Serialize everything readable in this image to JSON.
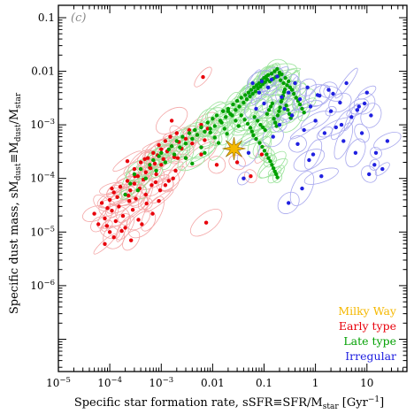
{
  "chart_data": {
    "type": "scatter",
    "panel_label": "(c)",
    "xlabel": "Specific star formation rate, sSFR≡SFR/M",
    "xlabel_sub": "star",
    "xlabel_unit": " [Gyr",
    "xlabel_unit_sup": "−1",
    "xlabel_unit_end": "]",
    "ylabel": "Specific dust mass, sM",
    "ylabel_sub1": "dust",
    "ylabel_mid": "≡M",
    "ylabel_sub2": "dust",
    "ylabel_slash": "/M",
    "ylabel_sub3": "star",
    "x_scale": "log",
    "y_scale": "log",
    "xlim": [
      1e-05,
      60
    ],
    "ylim": [
      2.5e-08,
      0.17
    ],
    "x_ticks": [
      {
        "value": 1e-05,
        "base": "10",
        "exp": "−5"
      },
      {
        "value": 0.0001,
        "base": "10",
        "exp": "−4"
      },
      {
        "value": 0.001,
        "base": "10",
        "exp": "−3"
      },
      {
        "value": 0.01,
        "base": "0.01",
        "exp": ""
      },
      {
        "value": 0.1,
        "base": "0.1",
        "exp": ""
      },
      {
        "value": 1,
        "base": "1",
        "exp": ""
      },
      {
        "value": 10,
        "base": "10",
        "exp": ""
      }
    ],
    "y_ticks": [
      {
        "value": 1e-06,
        "base": "10",
        "exp": "−6"
      },
      {
        "value": 1e-05,
        "base": "10",
        "exp": "−5"
      },
      {
        "value": 0.0001,
        "base": "10",
        "exp": "−4"
      },
      {
        "value": 0.001,
        "base": "10",
        "exp": "−3"
      },
      {
        "value": 0.01,
        "base": "0.01",
        "exp": ""
      },
      {
        "value": 0.1,
        "base": "0.1",
        "exp": ""
      }
    ],
    "legend_position": "bottom-right",
    "legend": [
      {
        "name": "Milky Way",
        "color": "#f5b800"
      },
      {
        "name": "Early type",
        "color": "#e8000b"
      },
      {
        "name": "Late type",
        "color": "#00a000"
      },
      {
        "name": "Irregular",
        "color": "#2020e0"
      }
    ],
    "milky_way": {
      "x": 0.026,
      "y": 0.00036,
      "color": "#f5b800"
    },
    "series": [
      {
        "name": "Early type",
        "color": "#e8000b",
        "ellipse_color": "#f4a6a6",
        "x": [
          5e-05,
          6e-05,
          7e-05,
          8e-05,
          8e-05,
          9e-05,
          0.0001,
          0.0001,
          0.00011,
          0.00012,
          0.00013,
          0.00014,
          0.00015,
          0.00016,
          0.00018,
          0.0002,
          0.0002,
          0.00022,
          0.00024,
          0.00025,
          0.00028,
          0.0003,
          0.0003,
          0.00032,
          0.00035,
          0.00038,
          0.0004,
          0.00045,
          0.0005,
          0.0005,
          0.00055,
          0.0006,
          0.00065,
          0.0007,
          0.00075,
          0.0008,
          0.00085,
          0.0009,
          0.001,
          0.001,
          0.0011,
          0.0012,
          0.0013,
          0.0015,
          0.0016,
          0.0018,
          0.002,
          0.0022,
          0.0025,
          0.003,
          0.0035,
          0.004,
          0.005,
          0.006,
          0.007,
          0.008,
          0.00012,
          0.00026,
          0.00042,
          0.00068,
          0.00017,
          0.00036,
          0.00095,
          0.0014,
          0.00052,
          0.00023,
          0.00078,
          0.00011,
          0.00031,
          0.0019,
          0.012,
          0.006,
          0.00022,
          0.00062,
          8.8e-05,
          0.00048,
          0.0021,
          0.0017,
          0.0009,
          0.0012,
          0.03,
          0.055,
          0.09,
          0.0065,
          0.0016,
          0.0075
        ],
        "y": [
          2.2e-05,
          1.4e-05,
          3.5e-05,
          1.8e-05,
          6e-06,
          2.8e-05,
          4e-05,
          1e-05,
          2.5e-05,
          5.5e-05,
          1.6e-05,
          4.5e-05,
          3e-05,
          7e-05,
          2e-05,
          5e-05,
          1.2e-05,
          9e-05,
          3.8e-05,
          6e-05,
          2.6e-05,
          8e-05,
          0.00015,
          4.2e-05,
          0.00011,
          6.5e-05,
          0.0002,
          9.5e-05,
          0.00013,
          5e-05,
          0.00024,
          0.00016,
          7.5e-05,
          0.0003,
          0.00019,
          0.00012,
          0.00027,
          0.00042,
          0.00018,
          0.00035,
          0.00023,
          0.0005,
          0.00032,
          0.0006,
          0.0004,
          0.00025,
          0.0007,
          0.00048,
          0.00036,
          0.00055,
          0.0008,
          0.00045,
          0.00065,
          0.001,
          0.00052,
          0.00085,
          8e-06,
          7e-06,
          1.4e-05,
          2.2e-05,
          1.05e-05,
          1.7e-05,
          6e-05,
          9e-05,
          3.4e-05,
          4.8e-05,
          8.5e-05,
          6.5e-05,
          0.00011,
          0.00014,
          0.00018,
          0.00028,
          0.00021,
          0.000155,
          1.3e-05,
          0.00023,
          0.00024,
          0.0001,
          3.8e-05,
          7.5e-05,
          0.0002,
          0.00011,
          0.00028,
          0.0078,
          0.0012,
          1.5e-05
        ]
      },
      {
        "name": "Late type",
        "color": "#00a000",
        "ellipse_color": "#9be39b",
        "x": [
          0.0002,
          0.00025,
          0.0003,
          0.00035,
          0.0004,
          0.0005,
          0.0006,
          0.0007,
          0.0008,
          0.0009,
          0.001,
          0.0012,
          0.0014,
          0.0016,
          0.0018,
          0.002,
          0.0023,
          0.0026,
          0.003,
          0.0035,
          0.004,
          0.0045,
          0.005,
          0.006,
          0.007,
          0.008,
          0.009,
          0.01,
          0.011,
          0.012,
          0.014,
          0.016,
          0.018,
          0.02,
          0.022,
          0.025,
          0.028,
          0.03,
          0.033,
          0.036,
          0.04,
          0.043,
          0.046,
          0.05,
          0.053,
          0.056,
          0.06,
          0.064,
          0.068,
          0.072,
          0.076,
          0.08,
          0.085,
          0.09,
          0.095,
          0.1,
          0.105,
          0.11,
          0.115,
          0.12,
          0.13,
          0.14,
          0.15,
          0.16,
          0.17,
          0.18,
          0.19,
          0.2,
          0.21,
          0.22,
          0.24,
          0.26,
          0.28,
          0.3,
          0.32,
          0.35,
          0.38,
          0.42,
          0.46,
          0.5,
          0.55,
          0.6,
          0.065,
          0.075,
          0.085,
          0.095,
          0.105,
          0.115,
          0.125,
          0.135,
          0.145,
          0.155,
          0.165,
          0.175,
          0.185,
          0.195,
          0.205,
          0.215,
          0.225,
          0.235,
          0.245,
          0.255,
          0.27,
          0.29,
          0.31,
          0.33,
          0.036,
          0.042,
          0.048,
          0.054,
          0.058,
          0.062,
          0.07,
          0.082,
          0.092,
          0.102,
          0.112,
          0.122,
          0.132,
          0.142,
          0.152,
          0.162,
          0.172,
          0.182,
          0.02,
          0.024,
          0.028,
          0.032,
          0.015,
          0.017,
          0.019,
          0.009,
          0.011,
          0.013,
          0.006,
          0.007,
          0.003,
          0.004
        ],
        "y": [
          5e-05,
          8e-05,
          0.00012,
          6e-05,
          0.00015,
          0.0001,
          0.00018,
          0.00022,
          0.00014,
          0.00026,
          0.0003,
          0.0002,
          0.00035,
          0.0004,
          0.00028,
          0.0005,
          0.00038,
          0.0006,
          0.00045,
          0.0007,
          0.00055,
          0.0008,
          0.00065,
          0.0009,
          0.00075,
          0.0011,
          0.00085,
          0.0013,
          0.00095,
          0.0015,
          0.0012,
          0.0018,
          0.0014,
          0.002,
          0.0016,
          0.0024,
          0.0019,
          0.0028,
          0.0022,
          0.0032,
          0.0026,
          0.0036,
          0.003,
          0.004,
          0.0034,
          0.0045,
          0.0038,
          0.005,
          0.0042,
          0.0055,
          0.0048,
          0.006,
          0.0052,
          0.0068,
          0.0058,
          0.0075,
          0.0063,
          0.008,
          0.007,
          0.0085,
          0.0065,
          0.009,
          0.0072,
          0.01,
          0.0078,
          0.011,
          0.0082,
          0.0095,
          0.0068,
          0.0088,
          0.006,
          0.0075,
          0.0055,
          0.0065,
          0.005,
          0.0045,
          0.0038,
          0.0032,
          0.0028,
          0.0024,
          0.002,
          0.0017,
          0.0014,
          0.0012,
          0.001,
          0.0009,
          0.0008,
          0.0016,
          0.0019,
          0.0022,
          0.0025,
          0.0013,
          0.0011,
          0.00095,
          0.0015,
          0.0018,
          0.0021,
          0.0027,
          0.0031,
          0.0035,
          0.0041,
          0.0046,
          0.0023,
          0.0019,
          0.0016,
          0.00135,
          0.0015,
          0.00125,
          0.00105,
          0.00088,
          0.00075,
          0.00064,
          0.00055,
          0.00046,
          0.00039,
          0.00033,
          0.00028,
          0.00024,
          0.00021,
          0.00018,
          0.000155,
          0.000135,
          0.00012,
          0.000105,
          0.0018,
          0.0015,
          0.0012,
          0.00095,
          0.0011,
          0.00085,
          0.00068,
          0.00072,
          0.00058,
          0.00046,
          0.00038,
          0.0003,
          0.00024,
          0.00019
        ]
      },
      {
        "name": "Irregular",
        "color": "#2020e0",
        "ellipse_color": "#a8a8ee",
        "x": [
          0.04,
          0.05,
          0.06,
          0.07,
          0.08,
          0.1,
          0.12,
          0.15,
          0.18,
          0.2,
          0.25,
          0.3,
          0.35,
          0.4,
          0.5,
          0.6,
          0.7,
          0.8,
          1.0,
          1.2,
          1.5,
          1.8,
          2.0,
          2.5,
          3.0,
          3.5,
          4.0,
          5.0,
          6.0,
          7.0,
          8.0,
          10,
          12,
          15,
          20,
          25,
          0.09,
          0.14,
          0.22,
          0.45,
          0.9,
          1.3,
          2.2,
          3.2,
          6.5,
          9.0,
          11,
          14,
          0.3,
          0.55,
          0.75,
          1.1
        ],
        "y": [
          0.0001,
          0.0003,
          0.006,
          0.002,
          0.004,
          0.0025,
          0.005,
          0.0006,
          0.008,
          0.001,
          0.002,
          0.004,
          0.0015,
          0.006,
          0.003,
          0.0008,
          0.005,
          0.0022,
          0.0012,
          0.0035,
          0.0007,
          0.0045,
          0.0018,
          0.0009,
          0.0026,
          0.0005,
          0.006,
          0.0014,
          0.0003,
          0.0022,
          0.0007,
          0.004,
          0.0015,
          0.0003,
          0.00015,
          0.0005,
          0.0065,
          0.007,
          0.0033,
          0.00044,
          0.00028,
          0.00011,
          0.0038,
          0.001,
          0.0019,
          0.0025,
          0.00012,
          0.00018,
          3.5e-05,
          6.5e-05,
          0.00022,
          0.0036
        ]
      }
    ]
  }
}
